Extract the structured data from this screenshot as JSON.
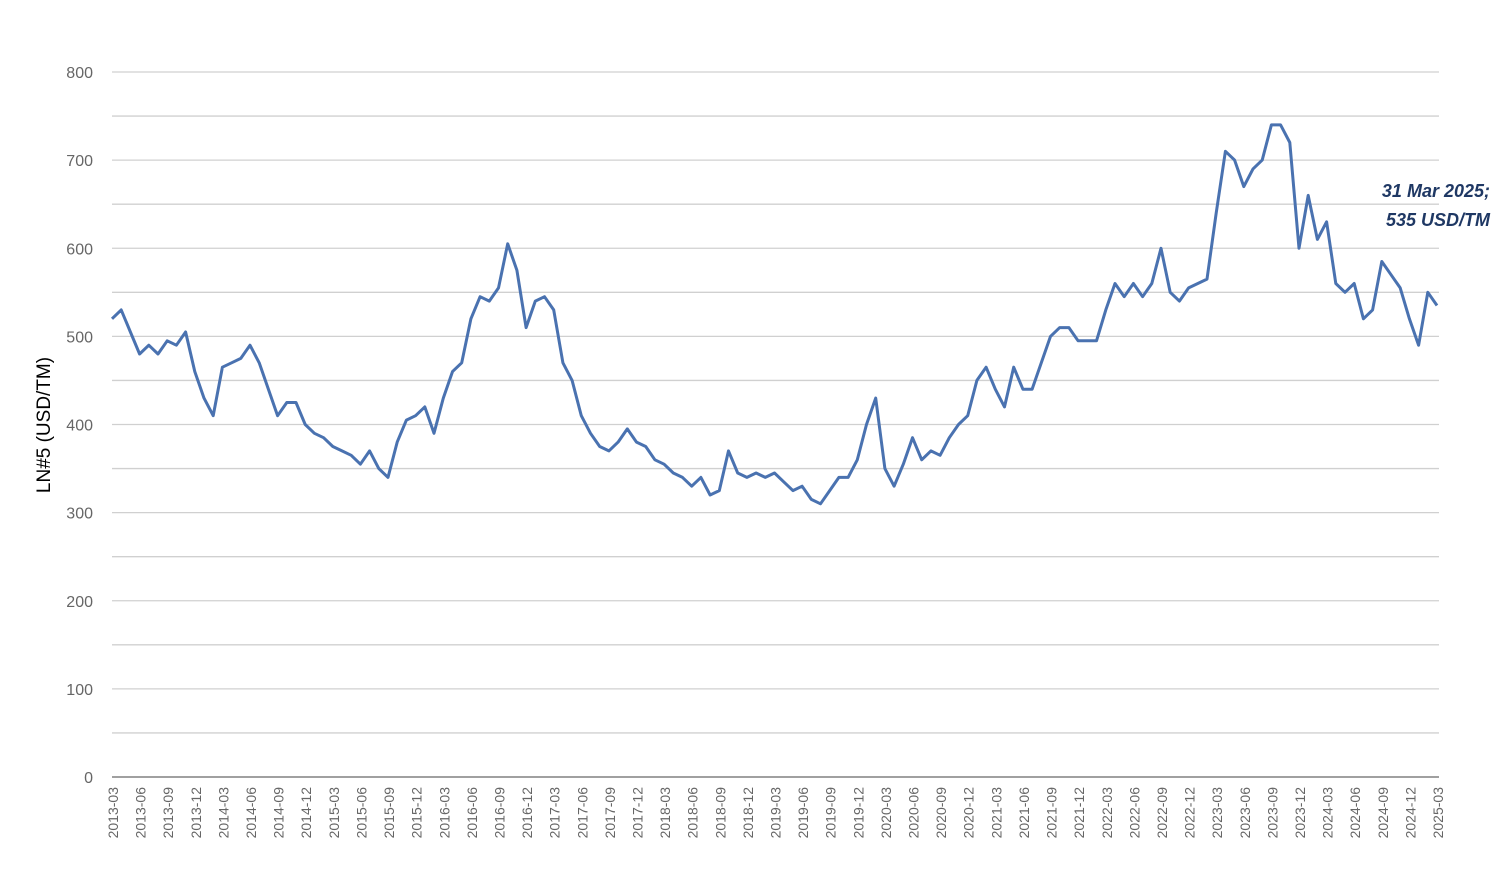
{
  "chart_data": {
    "type": "line",
    "title": "",
    "xlabel": "",
    "ylabel": "LN#5 (USD/TM)",
    "ylim": [
      0,
      800
    ],
    "yticks": [
      0,
      100,
      200,
      300,
      400,
      500,
      600,
      700,
      800
    ],
    "grid": true,
    "legend": "none",
    "line_color": "#4a72b0",
    "xtick_labels": [
      "2013-03",
      "2013-06",
      "2013-09",
      "2013-12",
      "2014-03",
      "2014-06",
      "2014-09",
      "2014-12",
      "2015-03",
      "2015-06",
      "2015-09",
      "2015-12",
      "2016-03",
      "2016-06",
      "2016-09",
      "2016-12",
      "2017-03",
      "2017-06",
      "2017-09",
      "2017-12",
      "2018-03",
      "2018-06",
      "2018-09",
      "2018-12",
      "2019-03",
      "2019-06",
      "2019-09",
      "2019-12",
      "2020-03",
      "2020-06",
      "2020-09",
      "2020-12",
      "2021-03",
      "2021-06",
      "2021-09",
      "2021-12",
      "2022-03",
      "2022-06",
      "2022-09",
      "2022-12",
      "2023-03",
      "2023-06",
      "2023-09",
      "2023-12",
      "2024-03",
      "2024-06",
      "2024-09",
      "2024-12",
      "2025-03"
    ],
    "x": [
      "2013-03",
      "2013-04",
      "2013-05",
      "2013-06",
      "2013-07",
      "2013-08",
      "2013-09",
      "2013-10",
      "2013-11",
      "2013-12",
      "2014-01",
      "2014-02",
      "2014-03",
      "2014-04",
      "2014-05",
      "2014-06",
      "2014-07",
      "2014-08",
      "2014-09",
      "2014-10",
      "2014-11",
      "2014-12",
      "2015-01",
      "2015-02",
      "2015-03",
      "2015-04",
      "2015-05",
      "2015-06",
      "2015-07",
      "2015-08",
      "2015-09",
      "2015-10",
      "2015-11",
      "2015-12",
      "2016-01",
      "2016-02",
      "2016-03",
      "2016-04",
      "2016-05",
      "2016-06",
      "2016-07",
      "2016-08",
      "2016-09",
      "2016-10",
      "2016-11",
      "2016-12",
      "2017-01",
      "2017-02",
      "2017-03",
      "2017-04",
      "2017-05",
      "2017-06",
      "2017-07",
      "2017-08",
      "2017-09",
      "2017-10",
      "2017-11",
      "2017-12",
      "2018-01",
      "2018-02",
      "2018-03",
      "2018-04",
      "2018-05",
      "2018-06",
      "2018-07",
      "2018-08",
      "2018-09",
      "2018-10",
      "2018-11",
      "2018-12",
      "2019-01",
      "2019-02",
      "2019-03",
      "2019-04",
      "2019-05",
      "2019-06",
      "2019-07",
      "2019-08",
      "2019-09",
      "2019-10",
      "2019-11",
      "2019-12",
      "2020-01",
      "2020-02",
      "2020-03",
      "2020-04",
      "2020-05",
      "2020-06",
      "2020-07",
      "2020-08",
      "2020-09",
      "2020-10",
      "2020-11",
      "2020-12",
      "2021-01",
      "2021-02",
      "2021-03",
      "2021-04",
      "2021-05",
      "2021-06",
      "2021-07",
      "2021-08",
      "2021-09",
      "2021-10",
      "2021-11",
      "2021-12",
      "2022-01",
      "2022-02",
      "2022-03",
      "2022-04",
      "2022-05",
      "2022-06",
      "2022-07",
      "2022-08",
      "2022-09",
      "2022-10",
      "2022-11",
      "2022-12",
      "2023-01",
      "2023-02",
      "2023-03",
      "2023-04",
      "2023-05",
      "2023-06",
      "2023-07",
      "2023-08",
      "2023-09",
      "2023-10",
      "2023-11",
      "2023-12",
      "2024-01",
      "2024-02",
      "2024-03",
      "2024-04",
      "2024-05",
      "2024-06",
      "2024-07",
      "2024-08",
      "2024-09",
      "2024-10",
      "2024-11",
      "2024-12",
      "2025-01",
      "2025-02",
      "2025-03"
    ],
    "values": [
      520,
      530,
      505,
      480,
      490,
      480,
      495,
      490,
      505,
      460,
      430,
      410,
      465,
      470,
      475,
      490,
      470,
      440,
      410,
      425,
      425,
      400,
      390,
      385,
      375,
      370,
      365,
      355,
      370,
      350,
      340,
      380,
      405,
      410,
      420,
      390,
      430,
      460,
      470,
      520,
      545,
      540,
      555,
      605,
      575,
      510,
      540,
      545,
      530,
      470,
      450,
      410,
      390,
      375,
      370,
      380,
      395,
      380,
      375,
      360,
      355,
      345,
      340,
      330,
      340,
      320,
      325,
      370,
      345,
      340,
      345,
      340,
      345,
      335,
      325,
      330,
      315,
      310,
      325,
      340,
      340,
      360,
      400,
      430,
      350,
      330,
      355,
      385,
      360,
      370,
      365,
      385,
      400,
      410,
      450,
      465,
      440,
      420,
      465,
      440,
      440,
      470,
      500,
      510,
      510,
      495,
      495,
      495,
      530,
      560,
      545,
      560,
      545,
      560,
      600,
      550,
      540,
      555,
      560,
      565,
      640,
      710,
      700,
      670,
      690,
      700,
      740,
      740,
      720,
      600,
      660,
      610,
      630,
      560,
      550,
      560,
      520,
      530,
      585,
      570,
      555,
      520,
      490,
      550,
      535
    ],
    "annotation": {
      "line1": "31 Mar 2025;",
      "line2": "535 USD/TM",
      "color": "#1f3864"
    }
  }
}
